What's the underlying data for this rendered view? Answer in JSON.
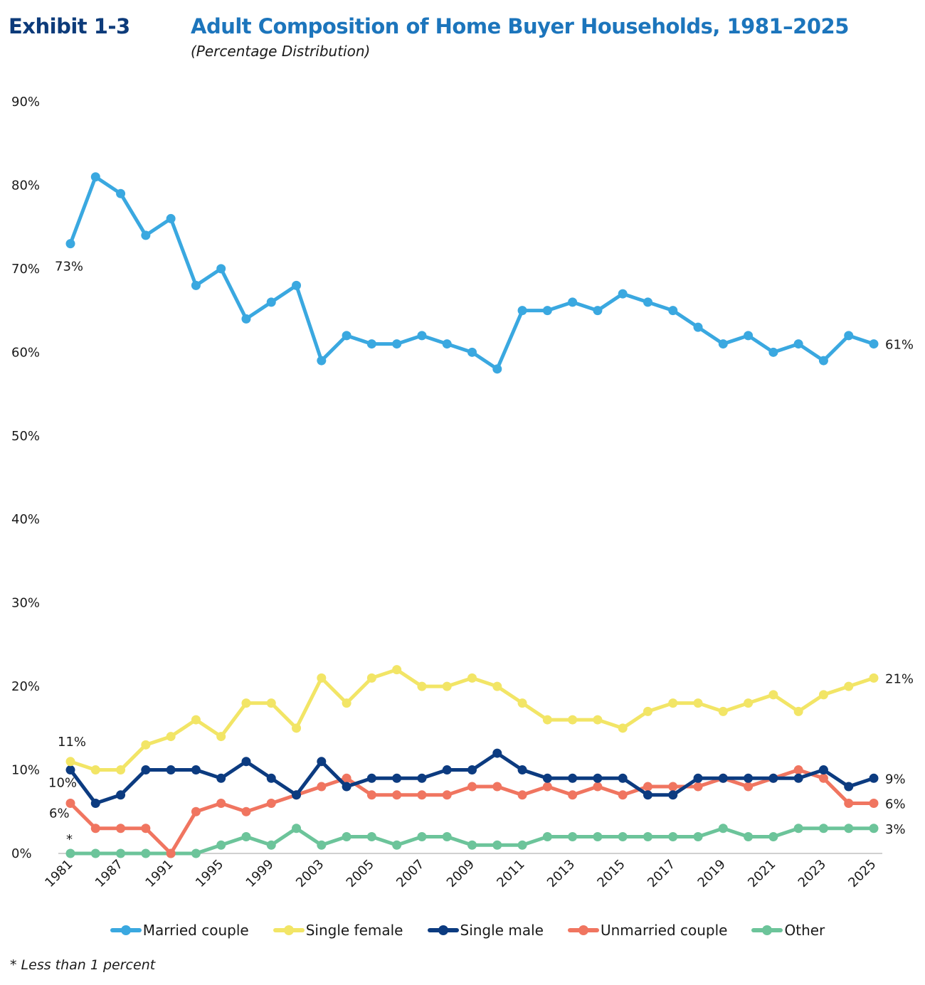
{
  "header": {
    "exhibit": "Exhibit 1-3",
    "title": "Adult Composition of Home Buyer Households, 1981–2025",
    "subtitle": "(Percentage Distribution)"
  },
  "footnote": "* Less than 1 percent",
  "chart_data": {
    "type": "line",
    "title": "Adult Composition of Home Buyer Households, 1981–2025",
    "subtitle": "(Percentage Distribution)",
    "xlabel": "",
    "ylabel": "",
    "ylim": [
      0,
      90
    ],
    "yticks": [
      "0%",
      "10%",
      "20%",
      "30%",
      "40%",
      "50%",
      "60%",
      "70%",
      "80%",
      "90%"
    ],
    "ytick_values": [
      0,
      10,
      20,
      30,
      40,
      50,
      60,
      70,
      80,
      90
    ],
    "grid": false,
    "legend_position": "bottom",
    "x": [
      "1981",
      "1985",
      "1987",
      "1989",
      "1991",
      "1993",
      "1995",
      "1997",
      "1999",
      "2001",
      "2003",
      "2004",
      "2005",
      "2006",
      "2007",
      "2008",
      "2009",
      "2010",
      "2011",
      "2012",
      "2013",
      "2014",
      "2015",
      "2016",
      "2017",
      "2018",
      "2019",
      "2020",
      "2021",
      "2022",
      "2023",
      "2024",
      "2025"
    ],
    "xtick_labels": [
      "1981",
      "1987",
      "1991",
      "1995",
      "1999",
      "2003",
      "2005",
      "2007",
      "2009",
      "2011",
      "2013",
      "2015",
      "2017",
      "2019",
      "2021",
      "2023",
      "2025"
    ],
    "series": [
      {
        "name": "Married couple",
        "color": "#3aa8e0",
        "values": [
          73,
          81,
          79,
          74,
          76,
          68,
          70,
          64,
          66,
          68,
          59,
          62,
          61,
          61,
          62,
          61,
          60,
          58,
          65,
          65,
          66,
          65,
          67,
          66,
          65,
          63,
          61,
          62,
          60,
          61,
          59,
          62,
          61
        ],
        "start_label": "73%",
        "end_label": "61%"
      },
      {
        "name": "Single female",
        "color": "#f2e566",
        "values": [
          11,
          10,
          10,
          13,
          14,
          16,
          14,
          18,
          18,
          15,
          21,
          18,
          21,
          22,
          20,
          20,
          21,
          20,
          18,
          16,
          16,
          16,
          15,
          17,
          18,
          18,
          17,
          18,
          19,
          17,
          19,
          20,
          21
        ],
        "start_label": "11%",
        "end_label": "21%"
      },
      {
        "name": "Single male",
        "color": "#0c3b80",
        "values": [
          10,
          6,
          7,
          10,
          10,
          10,
          9,
          11,
          9,
          7,
          11,
          8,
          9,
          9,
          9,
          10,
          10,
          12,
          10,
          9,
          9,
          9,
          9,
          7,
          7,
          9,
          9,
          9,
          9,
          9,
          10,
          8,
          9
        ],
        "start_label": "10%",
        "end_label": "9%"
      },
      {
        "name": "Unmarried couple",
        "color": "#f07560",
        "values": [
          6,
          3,
          3,
          3,
          0,
          5,
          6,
          5,
          6,
          7,
          8,
          9,
          7,
          7,
          7,
          7,
          8,
          8,
          7,
          8,
          7,
          8,
          7,
          8,
          8,
          8,
          9,
          8,
          9,
          10,
          9,
          6,
          6
        ],
        "start_label": "6%",
        "end_label": "6%"
      },
      {
        "name": "Other",
        "color": "#6cc49a",
        "values": [
          0,
          0,
          0,
          0,
          0,
          0,
          1,
          2,
          1,
          3,
          1,
          2,
          2,
          1,
          2,
          2,
          1,
          1,
          1,
          2,
          2,
          2,
          2,
          2,
          2,
          2,
          3,
          2,
          2,
          3,
          3,
          3,
          3
        ],
        "start_label": "*",
        "end_label": "3%"
      }
    ],
    "annotations": [
      "* Less than 1 percent"
    ]
  }
}
